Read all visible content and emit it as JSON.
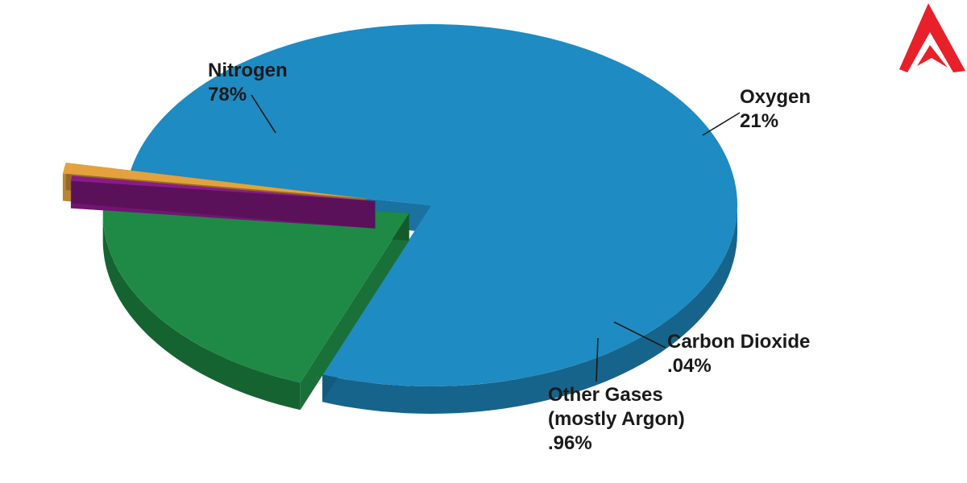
{
  "chart_data": {
    "type": "pie",
    "style": "3d-exploded",
    "slices": [
      {
        "name": "Nitrogen",
        "value": 78,
        "value_label": "78%",
        "color": "#1e8bc3"
      },
      {
        "name": "Oxygen",
        "value": 21,
        "value_label": "21%",
        "color": "#1e8a45"
      },
      {
        "name": "Carbon Dioxide",
        "value": 0.04,
        "value_label": ".04%",
        "color": "#8a1a8a"
      },
      {
        "name": "Other Gases (mostly Argon)",
        "value": 0.96,
        "value_label": ".96%",
        "color": "#e3a23c"
      }
    ],
    "labels": [
      {
        "lines": [
          "Nitrogen",
          "78%"
        ]
      },
      {
        "lines": [
          "Oxygen",
          "21%"
        ]
      },
      {
        "lines": [
          "Carbon Dioxide",
          ".04%"
        ]
      },
      {
        "lines": [
          "Other Gases",
          "(mostly Argon)",
          ".96%"
        ]
      }
    ]
  },
  "logo": {
    "icon": "adda-logo-icon",
    "color": "#e8202a"
  }
}
